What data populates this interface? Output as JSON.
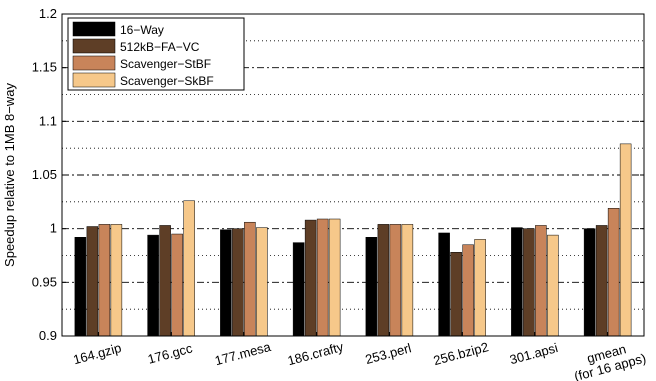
{
  "chart_data": {
    "type": "bar",
    "ylabel": "Speedup relative to 1MB 8−way",
    "ylim": [
      0.9,
      1.2
    ],
    "yticks": [
      0.9,
      0.95,
      1,
      1.05,
      1.1,
      1.15,
      1.2
    ],
    "ytick_labels": [
      "0.9",
      "0.95",
      "1",
      "1.05",
      "1.1",
      "1.15",
      "1.2"
    ],
    "categories": [
      "164.gzip",
      "176.gcc",
      "177.mesa",
      "186.crafty",
      "253.perl",
      "256.bzip2",
      "301.apsi",
      "gmean\n(for 16 apps)"
    ],
    "series": [
      {
        "name": "16−Way",
        "color": "#000000",
        "values": [
          0.992,
          0.994,
          0.999,
          0.987,
          0.992,
          0.996,
          1.001,
          1.0
        ]
      },
      {
        "name": "512kB−FA−VC",
        "color": "#5e3e26",
        "values": [
          1.002,
          1.003,
          1.0,
          1.008,
          1.004,
          0.978,
          1.0,
          1.003
        ]
      },
      {
        "name": "Scavenger−StBF",
        "color": "#c8845a",
        "values": [
          1.004,
          0.995,
          1.006,
          1.009,
          1.004,
          0.985,
          1.003,
          1.019
        ]
      },
      {
        "name": "Scavenger−SkBF",
        "color": "#f6c88a",
        "values": [
          1.004,
          1.026,
          1.001,
          1.009,
          1.004,
          0.99,
          0.994,
          1.079
        ]
      }
    ],
    "grid": {
      "dashdot_major": [
        0.95,
        1.0,
        1.05,
        1.1,
        1.15
      ],
      "dotted_minor": [
        0.925,
        0.975,
        1.025,
        1.075,
        1.125,
        1.175
      ]
    },
    "legend_position": "top-left"
  }
}
